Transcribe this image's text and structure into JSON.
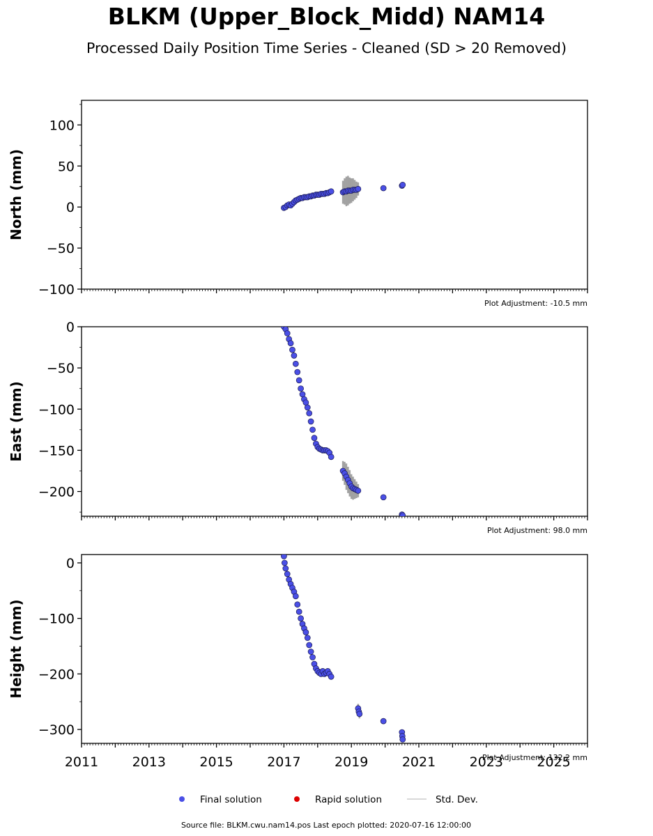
{
  "title": "BLKM (Upper_Block_Midd) NAM14",
  "subtitle": "Processed Daily Position Time Series - Cleaned (SD > 20 Removed)",
  "colors": {
    "final": "#4a4fe6",
    "final_edge": "#1a1a50",
    "rapid": "#dd0000",
    "std_dev": "#555555",
    "std_dev_legend": "#cccccc"
  },
  "legend": {
    "final": "Final solution",
    "rapid": "Rapid solution",
    "std_dev": "Std. Dev."
  },
  "source": "Source file: BLKM.cwu.nam14.pos  Last epoch plotted: 2020-07-16 12:00:00",
  "chart_data": [
    {
      "type": "scatter",
      "panel": "north",
      "ylabel": "North (mm)",
      "adjustment": "Plot Adjustment: -10.5 mm",
      "xlim": [
        2011,
        2026
      ],
      "ylim": [
        -100,
        130
      ],
      "yticks": [
        100,
        50,
        0,
        -50,
        -100
      ],
      "ytick_labels": [
        "100",
        "50",
        "0",
        "−50",
        "−100"
      ],
      "series": [
        {
          "x": [
            2017.0,
            2017.05,
            2017.1,
            2017.15,
            2017.2,
            2017.25,
            2017.3,
            2017.35,
            2017.4,
            2017.45,
            2017.5,
            2017.55,
            2017.6,
            2017.65,
            2017.7,
            2017.75,
            2017.8,
            2017.85,
            2017.9,
            2017.95,
            2018.0,
            2018.05,
            2018.1,
            2018.15,
            2018.2,
            2018.25,
            2018.3,
            2018.35,
            2018.4,
            2018.75,
            2018.8,
            2018.85,
            2018.9,
            2018.95,
            2019.0,
            2019.05,
            2019.1,
            2019.15,
            2019.2,
            2019.95,
            2020.5,
            2020.52
          ],
          "y": [
            -1,
            0,
            2,
            3,
            2,
            4,
            6,
            8,
            9,
            10,
            11,
            11,
            12,
            12,
            12,
            13,
            13,
            14,
            14,
            15,
            15,
            15,
            16,
            16,
            16,
            17,
            17,
            18,
            19,
            18,
            19,
            19,
            20,
            20,
            20,
            21,
            21,
            21,
            22,
            23,
            26,
            27
          ],
          "std": [
            0,
            0,
            0,
            0,
            0,
            0,
            0,
            0,
            0,
            0,
            0,
            0,
            0,
            0,
            0,
            0,
            0,
            0,
            0,
            0,
            0,
            0,
            0,
            0,
            0,
            0,
            0,
            0,
            0,
            14,
            16,
            18,
            18,
            16,
            15,
            14,
            12,
            10,
            8,
            0,
            0,
            0
          ]
        }
      ]
    },
    {
      "type": "scatter",
      "panel": "east",
      "ylabel": "East (mm)",
      "adjustment": "Plot Adjustment: 98.0 mm",
      "xlim": [
        2011,
        2026
      ],
      "ylim": [
        -230,
        0
      ],
      "yticks": [
        0,
        -50,
        -100,
        -150,
        -200
      ],
      "ytick_labels": [
        "0",
        "−50",
        "−100",
        "−150",
        "−200"
      ],
      "series": [
        {
          "x": [
            2017.0,
            2017.05,
            2017.1,
            2017.15,
            2017.2,
            2017.25,
            2017.3,
            2017.35,
            2017.4,
            2017.45,
            2017.5,
            2017.55,
            2017.6,
            2017.65,
            2017.7,
            2017.75,
            2017.8,
            2017.85,
            2017.9,
            2017.95,
            2018.0,
            2018.05,
            2018.1,
            2018.15,
            2018.2,
            2018.25,
            2018.3,
            2018.35,
            2018.4,
            2018.75,
            2018.8,
            2018.85,
            2018.9,
            2018.95,
            2019.0,
            2019.05,
            2019.1,
            2019.15,
            2019.2,
            2019.95,
            2020.5,
            2020.52
          ],
          "y": [
            0,
            -3,
            -8,
            -15,
            -20,
            -28,
            -35,
            -45,
            -55,
            -65,
            -75,
            -82,
            -88,
            -92,
            -98,
            -105,
            -115,
            -125,
            -135,
            -142,
            -146,
            -148,
            -149,
            -150,
            -150,
            -150,
            -151,
            -153,
            -158,
            -175,
            -178,
            -182,
            -186,
            -190,
            -194,
            -196,
            -197,
            -198,
            -199,
            -207,
            -228,
            -229
          ],
          "std": [
            0,
            0,
            0,
            0,
            0,
            0,
            0,
            0,
            0,
            0,
            0,
            0,
            0,
            0,
            0,
            0,
            0,
            0,
            0,
            0,
            0,
            0,
            0,
            0,
            0,
            0,
            0,
            0,
            0,
            12,
            14,
            16,
            16,
            16,
            15,
            14,
            12,
            10,
            8,
            0,
            0,
            0
          ]
        }
      ]
    },
    {
      "type": "scatter",
      "panel": "height",
      "ylabel": "Height (mm)",
      "adjustment": "Plot Adjustment: 132.2 mm",
      "xlim": [
        2011,
        2026
      ],
      "ylim": [
        -325,
        15
      ],
      "yticks": [
        0,
        -100,
        -200,
        -300
      ],
      "ytick_labels": [
        "0",
        "−100",
        "−200",
        "−300"
      ],
      "xticks": [
        2011,
        2013,
        2015,
        2017,
        2019,
        2021,
        2023,
        2025
      ],
      "xtick_labels": [
        "2011",
        "2013",
        "2015",
        "2017",
        "2019",
        "2021",
        "2023",
        "2025"
      ],
      "series": [
        {
          "x": [
            2017.0,
            2017.02,
            2017.05,
            2017.1,
            2017.15,
            2017.2,
            2017.25,
            2017.3,
            2017.35,
            2017.4,
            2017.45,
            2017.5,
            2017.55,
            2017.6,
            2017.65,
            2017.7,
            2017.75,
            2017.8,
            2017.85,
            2017.9,
            2017.95,
            2018.0,
            2018.05,
            2018.1,
            2018.15,
            2018.2,
            2018.25,
            2018.3,
            2018.35,
            2018.4,
            2019.2,
            2019.22,
            2019.24,
            2019.95,
            2020.5,
            2020.51,
            2020.52
          ],
          "y": [
            12,
            0,
            -10,
            -20,
            -30,
            -38,
            -45,
            -52,
            -60,
            -75,
            -88,
            -100,
            -110,
            -118,
            -125,
            -135,
            -148,
            -160,
            -170,
            -182,
            -190,
            -195,
            -198,
            -200,
            -195,
            -200,
            -198,
            -195,
            -200,
            -205,
            -262,
            -268,
            -272,
            -285,
            -305,
            -312,
            -318
          ],
          "std": [
            0,
            0,
            0,
            0,
            0,
            0,
            0,
            0,
            0,
            0,
            0,
            0,
            0,
            0,
            0,
            0,
            0,
            0,
            0,
            0,
            0,
            0,
            0,
            0,
            0,
            0,
            0,
            0,
            0,
            0,
            8,
            8,
            8,
            0,
            0,
            0,
            0
          ]
        }
      ]
    }
  ]
}
